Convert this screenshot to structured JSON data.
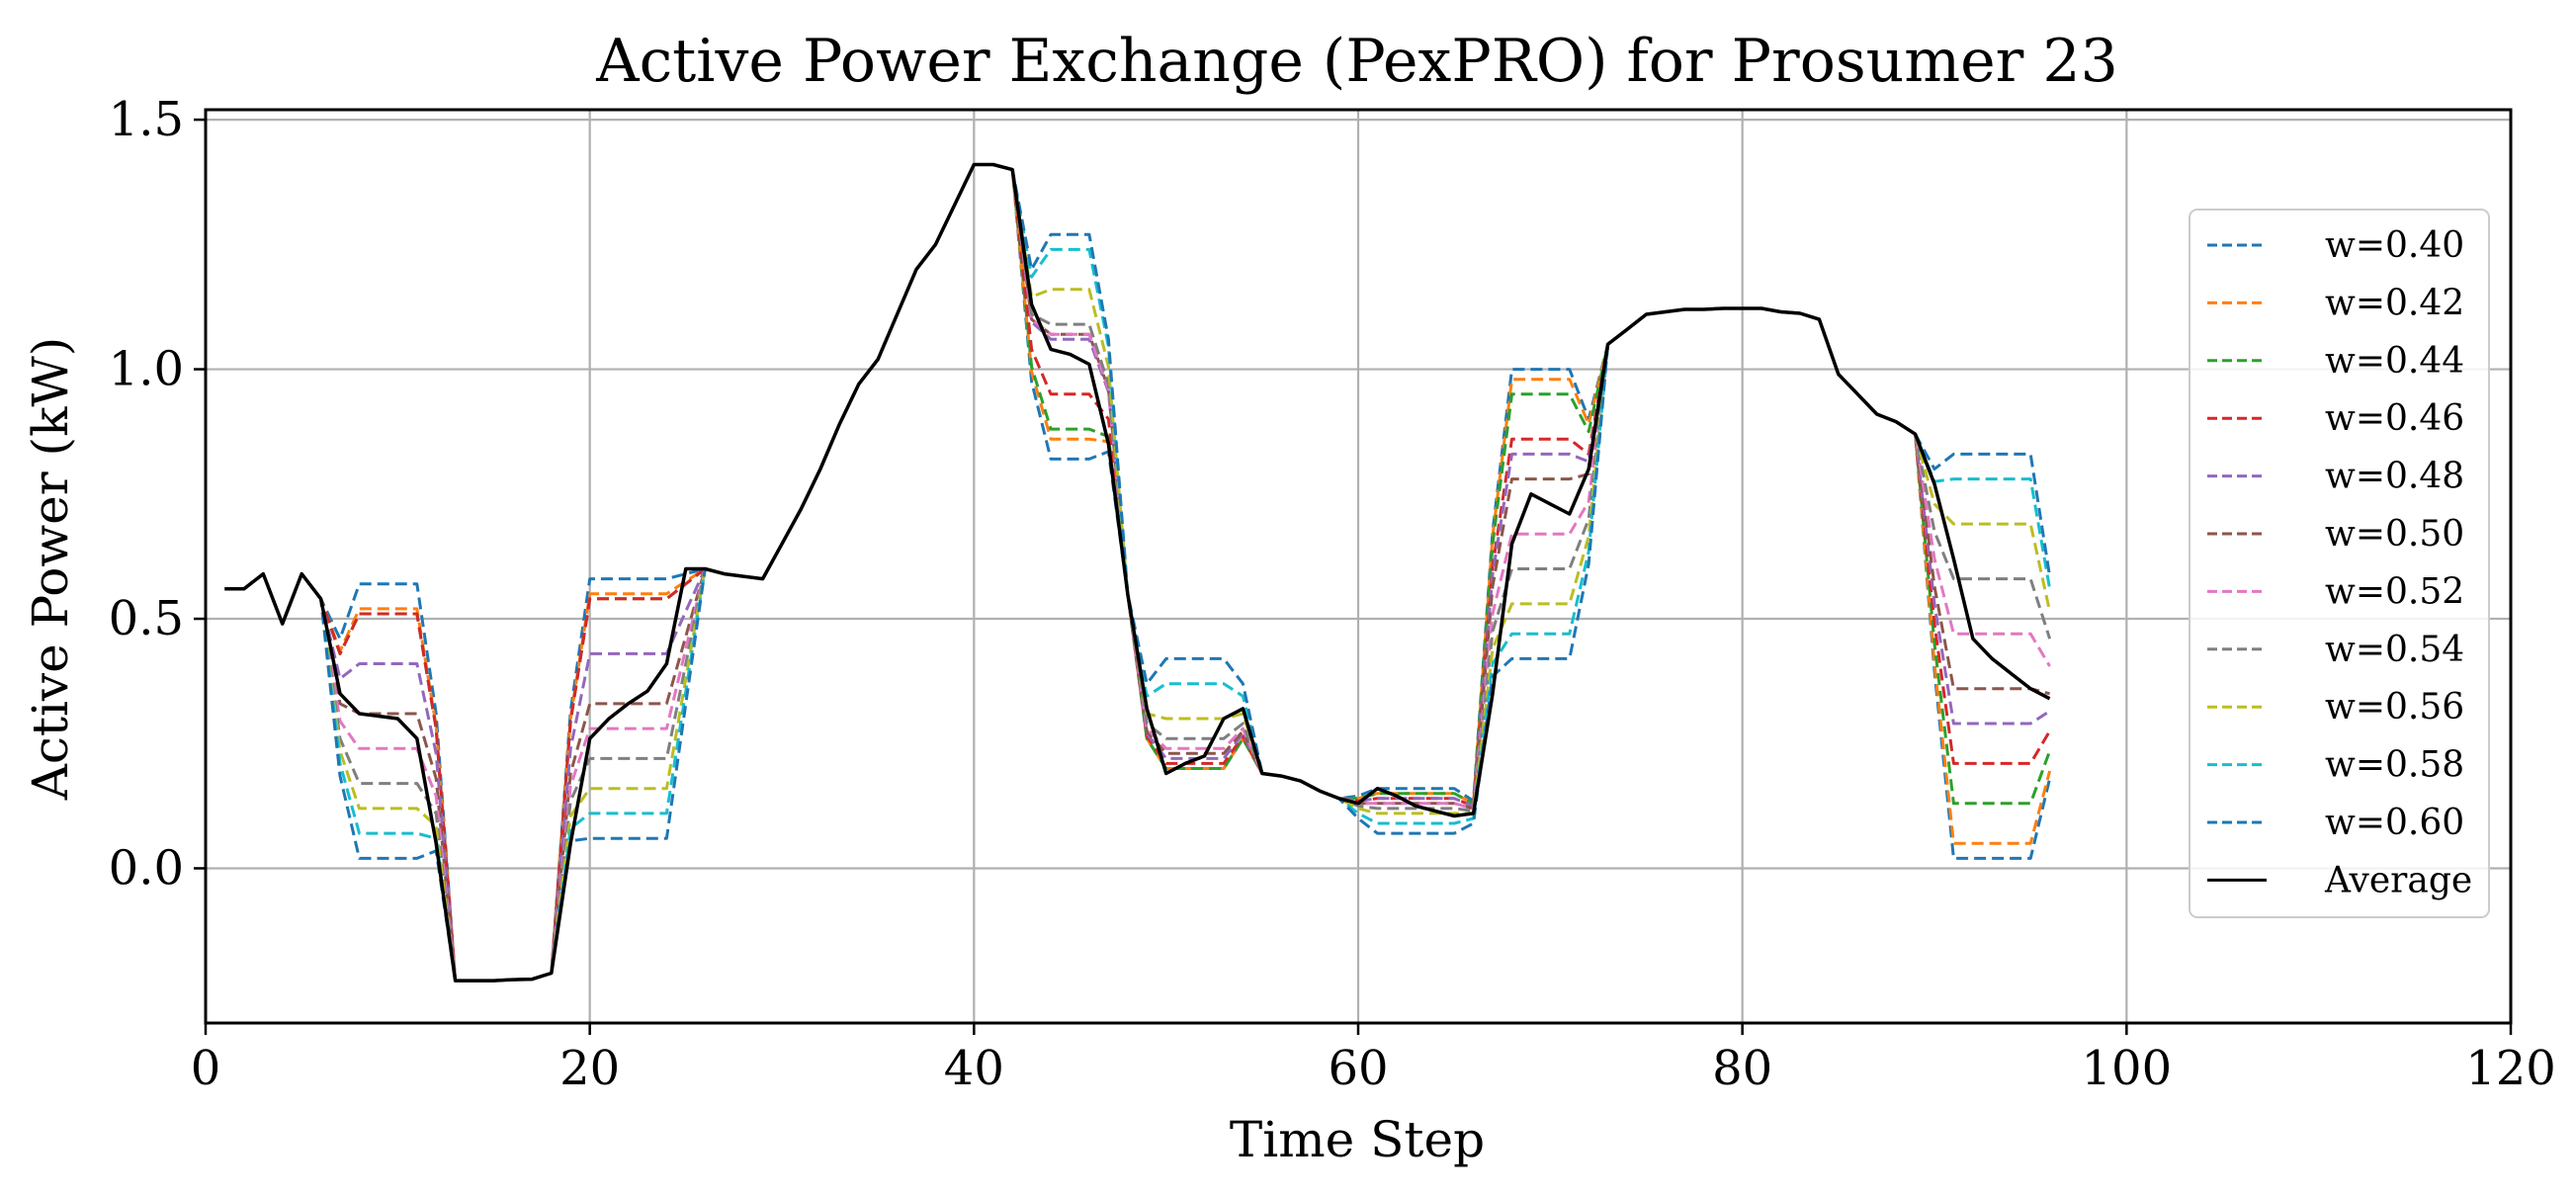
{
  "chart_data": {
    "type": "line",
    "title": "Active Power Exchange (PexPRO) for Prosumer 23",
    "xlabel": "Time Step",
    "ylabel": "Active Power (kW)",
    "xlim": [
      0,
      120
    ],
    "ylim": [
      -0.31,
      1.52
    ],
    "xticks": [
      0,
      20,
      40,
      60,
      80,
      100,
      120
    ],
    "xtick_labels": [
      "0",
      "20",
      "40",
      "60",
      "80",
      "100",
      "120"
    ],
    "yticks": [
      0.0,
      0.5,
      1.0,
      1.5
    ],
    "ytick_labels": [
      "0.0",
      "0.5",
      "1.0",
      "1.5"
    ],
    "grid": true,
    "legend_position": "center-right",
    "average": {
      "name": "Average",
      "color": "#000000",
      "style": "solid",
      "points": [
        [
          1,
          0.56
        ],
        [
          2,
          0.56
        ],
        [
          3,
          0.59
        ],
        [
          4,
          0.49
        ],
        [
          5,
          0.59
        ],
        [
          6,
          0.54
        ],
        [
          7,
          0.35
        ],
        [
          8,
          0.31
        ],
        [
          9,
          0.305
        ],
        [
          10,
          0.3
        ],
        [
          11,
          0.26
        ],
        [
          12,
          0.05
        ],
        [
          13,
          -0.225
        ],
        [
          14,
          -0.225
        ],
        [
          15,
          -0.225
        ],
        [
          16,
          -0.223
        ],
        [
          17,
          -0.222
        ],
        [
          18,
          -0.21
        ],
        [
          19,
          0.05
        ],
        [
          20,
          0.26
        ],
        [
          21,
          0.3
        ],
        [
          22,
          0.33
        ],
        [
          23,
          0.355
        ],
        [
          24,
          0.41
        ],
        [
          25,
          0.6
        ],
        [
          26,
          0.6
        ],
        [
          27,
          0.59
        ],
        [
          28,
          0.585
        ],
        [
          29,
          0.58
        ],
        [
          30,
          0.65
        ],
        [
          31,
          0.72
        ],
        [
          32,
          0.8
        ],
        [
          33,
          0.89
        ],
        [
          34,
          0.97
        ],
        [
          35,
          1.02
        ],
        [
          36,
          1.11
        ],
        [
          37,
          1.2
        ],
        [
          38,
          1.25
        ],
        [
          39,
          1.33
        ],
        [
          40,
          1.41
        ],
        [
          41,
          1.41
        ],
        [
          42,
          1.4
        ],
        [
          43,
          1.13
        ],
        [
          44,
          1.04
        ],
        [
          45,
          1.03
        ],
        [
          46,
          1.01
        ],
        [
          47,
          0.85
        ],
        [
          48,
          0.55
        ],
        [
          49,
          0.32
        ],
        [
          50,
          0.19
        ],
        [
          51,
          0.21
        ],
        [
          52,
          0.225
        ],
        [
          53,
          0.3
        ],
        [
          54,
          0.32
        ],
        [
          55,
          0.19
        ],
        [
          56,
          0.185
        ],
        [
          57,
          0.175
        ],
        [
          58,
          0.155
        ],
        [
          59,
          0.14
        ],
        [
          60,
          0.13
        ],
        [
          61,
          0.16
        ],
        [
          62,
          0.145
        ],
        [
          63,
          0.125
        ],
        [
          64,
          0.115
        ],
        [
          65,
          0.105
        ],
        [
          66,
          0.11
        ],
        [
          67,
          0.35
        ],
        [
          68,
          0.65
        ],
        [
          69,
          0.75
        ],
        [
          70,
          0.73
        ],
        [
          71,
          0.71
        ],
        [
          72,
          0.8
        ],
        [
          73,
          1.05
        ],
        [
          74,
          1.08
        ],
        [
          75,
          1.11
        ],
        [
          76,
          1.115
        ],
        [
          77,
          1.12
        ],
        [
          78,
          1.12
        ],
        [
          79,
          1.122
        ],
        [
          80,
          1.122
        ],
        [
          81,
          1.122
        ],
        [
          82,
          1.115
        ],
        [
          83,
          1.112
        ],
        [
          84,
          1.1
        ],
        [
          85,
          0.99
        ],
        [
          86,
          0.95
        ],
        [
          87,
          0.91
        ],
        [
          88,
          0.895
        ],
        [
          89,
          0.87
        ],
        [
          90,
          0.77
        ],
        [
          91,
          0.62
        ],
        [
          92,
          0.46
        ],
        [
          93,
          0.42
        ],
        [
          94,
          0.39
        ],
        [
          95,
          0.36
        ],
        [
          96,
          0.34
        ]
      ]
    },
    "series": [
      {
        "name": "w=0.40",
        "color": "#1f77b4",
        "style": "dashed"
      },
      {
        "name": "w=0.42",
        "color": "#ff7f0e",
        "style": "dashed"
      },
      {
        "name": "w=0.44",
        "color": "#2ca02c",
        "style": "dashed"
      },
      {
        "name": "w=0.46",
        "color": "#d62728",
        "style": "dashed"
      },
      {
        "name": "w=0.48",
        "color": "#9467bd",
        "style": "dashed"
      },
      {
        "name": "w=0.50",
        "color": "#8c564b",
        "style": "dashed"
      },
      {
        "name": "w=0.52",
        "color": "#e377c2",
        "style": "dashed"
      },
      {
        "name": "w=0.54",
        "color": "#7f7f7f",
        "style": "dashed"
      },
      {
        "name": "w=0.56",
        "color": "#bcbd22",
        "style": "dashed"
      },
      {
        "name": "w=0.58",
        "color": "#17becf",
        "style": "dashed"
      },
      {
        "name": "w=0.60",
        "color": "#1f77b4",
        "style": "dashed"
      }
    ],
    "series_deviation": {
      "w=0.40": [
        {
          "x": [
            7,
            12
          ],
          "y": 0.57
        },
        {
          "x": [
            19,
            25
          ],
          "y": 0.58
        },
        {
          "x": [
            43,
            47
          ],
          "y": 0.82
        },
        {
          "x": [
            49,
            54
          ],
          "y": 0.2
        },
        {
          "x": [
            60,
            66
          ],
          "y": 0.16
        },
        {
          "x": [
            67,
            72
          ],
          "y": 1.0
        },
        {
          "x": [
            90,
            96
          ],
          "y": 0.02
        }
      ],
      "w=0.42": [
        {
          "x": [
            7,
            12
          ],
          "y": 0.52
        },
        {
          "x": [
            19,
            25
          ],
          "y": 0.55
        },
        {
          "x": [
            43,
            47
          ],
          "y": 0.86
        },
        {
          "x": [
            49,
            54
          ],
          "y": 0.2
        },
        {
          "x": [
            60,
            66
          ],
          "y": 0.15
        },
        {
          "x": [
            67,
            72
          ],
          "y": 0.98
        },
        {
          "x": [
            90,
            96
          ],
          "y": 0.05
        }
      ],
      "w=0.44": [
        {
          "x": [
            7,
            12
          ],
          "y": 0.51
        },
        {
          "x": [
            19,
            25
          ],
          "y": 0.54
        },
        {
          "x": [
            43,
            47
          ],
          "y": 0.88
        },
        {
          "x": [
            49,
            54
          ],
          "y": 0.2
        },
        {
          "x": [
            60,
            66
          ],
          "y": 0.15
        },
        {
          "x": [
            67,
            72
          ],
          "y": 0.95
        },
        {
          "x": [
            90,
            96
          ],
          "y": 0.13
        }
      ],
      "w=0.46": [
        {
          "x": [
            7,
            12
          ],
          "y": 0.51
        },
        {
          "x": [
            19,
            25
          ],
          "y": 0.54
        },
        {
          "x": [
            43,
            47
          ],
          "y": 0.95
        },
        {
          "x": [
            49,
            54
          ],
          "y": 0.21
        },
        {
          "x": [
            60,
            66
          ],
          "y": 0.14
        },
        {
          "x": [
            67,
            72
          ],
          "y": 0.86
        },
        {
          "x": [
            90,
            96
          ],
          "y": 0.21
        }
      ],
      "w=0.48": [
        {
          "x": [
            7,
            12
          ],
          "y": 0.41
        },
        {
          "x": [
            19,
            25
          ],
          "y": 0.43
        },
        {
          "x": [
            43,
            47
          ],
          "y": 1.06
        },
        {
          "x": [
            49,
            54
          ],
          "y": 0.22
        },
        {
          "x": [
            60,
            66
          ],
          "y": 0.14
        },
        {
          "x": [
            67,
            72
          ],
          "y": 0.83
        },
        {
          "x": [
            90,
            96
          ],
          "y": 0.29
        }
      ],
      "w=0.50": [
        {
          "x": [
            7,
            12
          ],
          "y": 0.31
        },
        {
          "x": [
            19,
            25
          ],
          "y": 0.33
        },
        {
          "x": [
            43,
            47
          ],
          "y": 1.07
        },
        {
          "x": [
            49,
            54
          ],
          "y": 0.23
        },
        {
          "x": [
            60,
            66
          ],
          "y": 0.13
        },
        {
          "x": [
            67,
            72
          ],
          "y": 0.78
        },
        {
          "x": [
            90,
            96
          ],
          "y": 0.36
        }
      ],
      "w=0.52": [
        {
          "x": [
            7,
            12
          ],
          "y": 0.24
        },
        {
          "x": [
            19,
            25
          ],
          "y": 0.28
        },
        {
          "x": [
            43,
            47
          ],
          "y": 1.07
        },
        {
          "x": [
            49,
            54
          ],
          "y": 0.24
        },
        {
          "x": [
            60,
            66
          ],
          "y": 0.13
        },
        {
          "x": [
            67,
            72
          ],
          "y": 0.67
        },
        {
          "x": [
            90,
            96
          ],
          "y": 0.47
        }
      ],
      "w=0.54": [
        {
          "x": [
            7,
            12
          ],
          "y": 0.17
        },
        {
          "x": [
            19,
            25
          ],
          "y": 0.22
        },
        {
          "x": [
            43,
            47
          ],
          "y": 1.09
        },
        {
          "x": [
            49,
            54
          ],
          "y": 0.26
        },
        {
          "x": [
            60,
            66
          ],
          "y": 0.12
        },
        {
          "x": [
            67,
            72
          ],
          "y": 0.6
        },
        {
          "x": [
            90,
            96
          ],
          "y": 0.58
        }
      ],
      "w=0.56": [
        {
          "x": [
            7,
            12
          ],
          "y": 0.12
        },
        {
          "x": [
            19,
            25
          ],
          "y": 0.16
        },
        {
          "x": [
            43,
            47
          ],
          "y": 1.16
        },
        {
          "x": [
            49,
            54
          ],
          "y": 0.3
        },
        {
          "x": [
            60,
            66
          ],
          "y": 0.11
        },
        {
          "x": [
            67,
            72
          ],
          "y": 0.53
        },
        {
          "x": [
            90,
            96
          ],
          "y": 0.69
        }
      ],
      "w=0.58": [
        {
          "x": [
            7,
            12
          ],
          "y": 0.07
        },
        {
          "x": [
            19,
            25
          ],
          "y": 0.11
        },
        {
          "x": [
            43,
            47
          ],
          "y": 1.24
        },
        {
          "x": [
            49,
            54
          ],
          "y": 0.37
        },
        {
          "x": [
            60,
            66
          ],
          "y": 0.09
        },
        {
          "x": [
            67,
            72
          ],
          "y": 0.47
        },
        {
          "x": [
            90,
            96
          ],
          "y": 0.78
        }
      ],
      "w=0.60": [
        {
          "x": [
            7,
            12
          ],
          "y": 0.02
        },
        {
          "x": [
            19,
            25
          ],
          "y": 0.06
        },
        {
          "x": [
            43,
            47
          ],
          "y": 1.27
        },
        {
          "x": [
            49,
            54
          ],
          "y": 0.42
        },
        {
          "x": [
            60,
            66
          ],
          "y": 0.07
        },
        {
          "x": [
            67,
            72
          ],
          "y": 0.42
        },
        {
          "x": [
            90,
            96
          ],
          "y": 0.83
        }
      ]
    }
  }
}
